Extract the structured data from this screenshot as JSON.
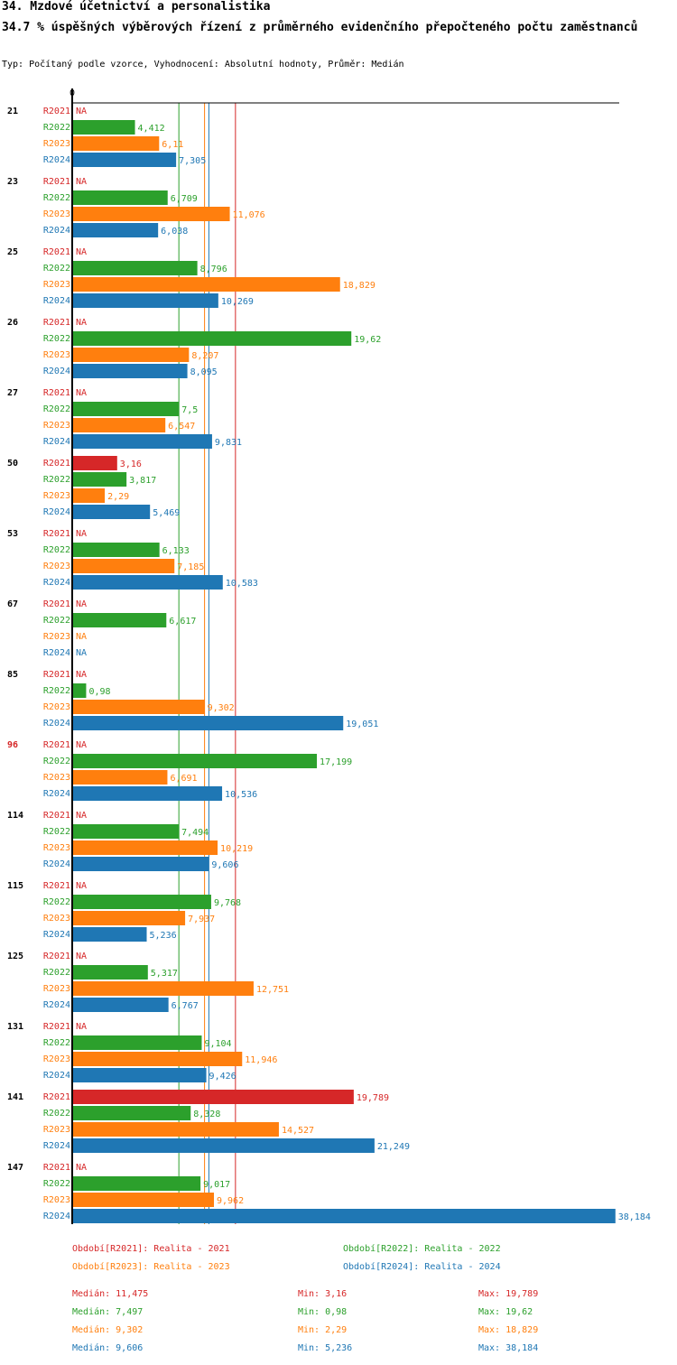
{
  "header": {
    "title": "34. Mzdové účetnictví a personalistika",
    "subtitle": "34.7 % úspěšných výběrových řízení z průměrného evidenčního přepočteného počtu zaměstnanců",
    "meta": "Typ: Počítaný podle vzorce, Vyhodnocení: Absolutní hodnoty, Průměr: Medián"
  },
  "colors": {
    "R2021": "#d62728",
    "R2022": "#2ca02c",
    "R2023": "#ff7f0e",
    "R2024": "#1f77b4",
    "highlight_group": "#d62728",
    "default_group": "#000000"
  },
  "chart_data": {
    "type": "bar",
    "orientation": "horizontal",
    "axis_zero_label": "0",
    "xlim": [
      0,
      38.184
    ],
    "series_names": [
      "R2021",
      "R2022",
      "R2023",
      "R2024"
    ],
    "highlight_group": "96",
    "na_label": "NA",
    "groups": [
      {
        "label": "21",
        "values": [
          null,
          4.412,
          6.11,
          7.305
        ],
        "labels": [
          "NA",
          "4,412",
          "6,11",
          "7,305"
        ]
      },
      {
        "label": "23",
        "values": [
          null,
          6.709,
          11.076,
          6.038
        ],
        "labels": [
          "NA",
          "6,709",
          "11,076",
          "6,038"
        ]
      },
      {
        "label": "25",
        "values": [
          null,
          8.796,
          18.829,
          10.269
        ],
        "labels": [
          "NA",
          "8,796",
          "18,829",
          "10,269"
        ]
      },
      {
        "label": "26",
        "values": [
          null,
          19.62,
          8.207,
          8.095
        ],
        "labels": [
          "NA",
          "19,62",
          "8,207",
          "8,095"
        ]
      },
      {
        "label": "27",
        "values": [
          null,
          7.5,
          6.547,
          9.831
        ],
        "labels": [
          "NA",
          "7,5",
          "6,547",
          "9,831"
        ]
      },
      {
        "label": "50",
        "values": [
          3.16,
          3.817,
          2.29,
          5.469
        ],
        "labels": [
          "3,16",
          "3,817",
          "2,29",
          "5,469"
        ]
      },
      {
        "label": "53",
        "values": [
          null,
          6.133,
          7.185,
          10.583
        ],
        "labels": [
          "NA",
          "6,133",
          "7,185",
          "10,583"
        ]
      },
      {
        "label": "67",
        "values": [
          null,
          6.617,
          null,
          null
        ],
        "labels": [
          "NA",
          "6,617",
          "NA",
          "NA"
        ]
      },
      {
        "label": "85",
        "values": [
          null,
          0.98,
          9.302,
          19.051
        ],
        "labels": [
          "NA",
          "0,98",
          "9,302",
          "19,051"
        ]
      },
      {
        "label": "96",
        "values": [
          null,
          17.199,
          6.691,
          10.536
        ],
        "labels": [
          "NA",
          "17,199",
          "6,691",
          "10,536"
        ]
      },
      {
        "label": "114",
        "values": [
          null,
          7.494,
          10.219,
          9.606
        ],
        "labels": [
          "NA",
          "7,494",
          "10,219",
          "9,606"
        ]
      },
      {
        "label": "115",
        "values": [
          null,
          9.768,
          7.937,
          5.236
        ],
        "labels": [
          "NA",
          "9,768",
          "7,937",
          "5,236"
        ]
      },
      {
        "label": "125",
        "values": [
          null,
          5.317,
          12.751,
          6.767
        ],
        "labels": [
          "NA",
          "5,317",
          "12,751",
          "6,767"
        ]
      },
      {
        "label": "131",
        "values": [
          null,
          9.104,
          11.946,
          9.426
        ],
        "labels": [
          "NA",
          "9,104",
          "11,946",
          "9,426"
        ]
      },
      {
        "label": "141",
        "values": [
          19.789,
          8.328,
          14.527,
          21.249
        ],
        "labels": [
          "19,789",
          "8,328",
          "14,527",
          "21,249"
        ]
      },
      {
        "label": "147",
        "values": [
          null,
          9.017,
          9.962,
          38.184
        ],
        "labels": [
          "NA",
          "9,017",
          "9,962",
          "38,184"
        ]
      }
    ],
    "median_lines": {
      "R2021": 11.475,
      "R2022": 7.497,
      "R2023": 9.302,
      "R2024": 9.606
    }
  },
  "legend": [
    {
      "series": "R2021",
      "text": "Období[R2021]: Realita - 2021"
    },
    {
      "series": "R2022",
      "text": "Období[R2022]: Realita - 2022"
    },
    {
      "series": "R2023",
      "text": "Období[R2023]: Realita - 2023"
    },
    {
      "series": "R2024",
      "text": "Období[R2024]: Realita - 2024"
    }
  ],
  "stats": [
    {
      "series": "R2021",
      "median": "Medián: 11,475",
      "min": "Min: 3,16",
      "max": "Max: 19,789"
    },
    {
      "series": "R2022",
      "median": "Medián: 7,497",
      "min": "Min: 0,98",
      "max": "Max: 19,62"
    },
    {
      "series": "R2023",
      "median": "Medián: 9,302",
      "min": "Min: 2,29",
      "max": "Max: 18,829"
    },
    {
      "series": "R2024",
      "median": "Medián: 9,606",
      "min": "Min: 5,236",
      "max": "Max: 38,184"
    }
  ]
}
